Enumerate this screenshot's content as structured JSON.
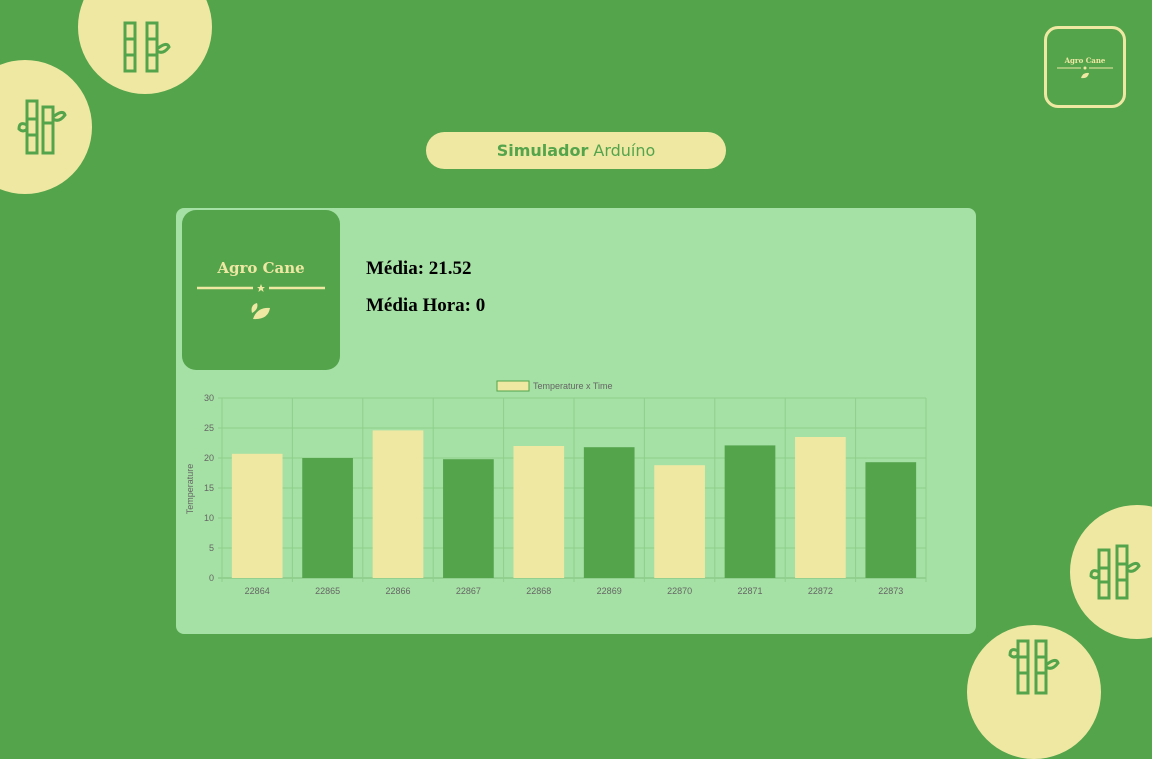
{
  "header": {
    "title_strong": "Simulador",
    "title_rest": "Arduíno"
  },
  "brand": {
    "name": "Agro Cane"
  },
  "stats": {
    "media": "Média: 21.52",
    "media_hora": "Média Hora: 0"
  },
  "colors": {
    "background": "#54a44c",
    "accent": "#efe8a3",
    "card": "#a5e0a4",
    "bar_dark": "#54a44c"
  },
  "chart_data": {
    "type": "bar",
    "legend": "Temperature x Time",
    "ylabel": "Temperature",
    "xlabel": "",
    "categories": [
      "22864",
      "22865",
      "22866",
      "22867",
      "22868",
      "22869",
      "22870",
      "22871",
      "22872",
      "22873"
    ],
    "values": [
      20.7,
      20.0,
      24.6,
      19.8,
      22.0,
      21.8,
      18.8,
      22.1,
      23.5,
      19.3
    ],
    "bar_colors": [
      "#efe8a3",
      "#54a44c",
      "#efe8a3",
      "#54a44c",
      "#efe8a3",
      "#54a44c",
      "#efe8a3",
      "#54a44c",
      "#efe8a3",
      "#54a44c"
    ],
    "ylim": [
      0,
      30
    ],
    "yticks": [
      "0",
      "5",
      "10",
      "15",
      "20",
      "25",
      "30"
    ],
    "grid": true,
    "legend_position": "top"
  }
}
